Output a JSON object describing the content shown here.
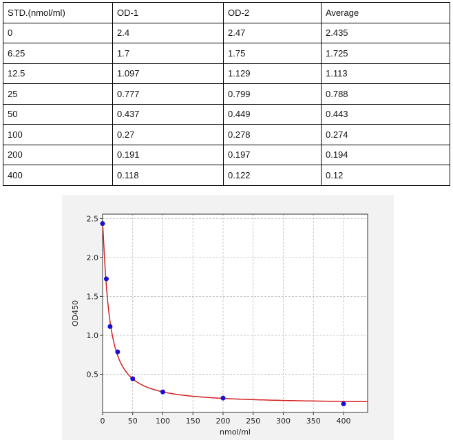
{
  "table": {
    "headers": [
      "STD.(nmol/ml)",
      "OD-1",
      "OD-2",
      "Average"
    ],
    "rows": [
      [
        "0",
        "2.4",
        "2.47",
        "2.435"
      ],
      [
        "6.25",
        "1.7",
        "1.75",
        "1.725"
      ],
      [
        "12.5",
        "1.097",
        "1.129",
        "1.113"
      ],
      [
        "25",
        "0.777",
        "0.799",
        "0.788"
      ],
      [
        "50",
        "0.437",
        "0.449",
        "0.443"
      ],
      [
        "100",
        "0.27",
        "0.278",
        "0.274"
      ],
      [
        "200",
        "0.191",
        "0.197",
        "0.194"
      ],
      [
        "400",
        "0.118",
        "0.122",
        "0.12"
      ]
    ]
  },
  "chart_data": {
    "type": "scatter",
    "xlabel": "nmol/ml",
    "ylabel": "OD450",
    "xlim": [
      0,
      440
    ],
    "ylim": [
      0.01,
      2.556
    ],
    "xticks": [
      "0",
      "50",
      "100",
      "150",
      "200",
      "250",
      "300",
      "350",
      "400"
    ],
    "yticks": [
      "0.5",
      "1.0",
      "1.5",
      "2.0",
      "2.5"
    ],
    "grid": true,
    "x": [
      0,
      6.25,
      12.5,
      25,
      50,
      100,
      200,
      400
    ],
    "y": [
      2.435,
      1.725,
      1.113,
      0.788,
      0.443,
      0.274,
      0.194,
      0.12
    ],
    "point_color": "#1a0fd0",
    "curve_color": "#d62020"
  }
}
